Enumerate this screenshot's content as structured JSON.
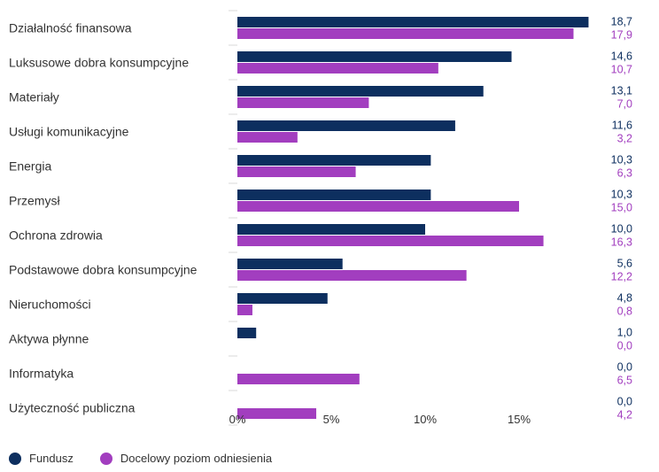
{
  "chart_data": {
    "type": "bar",
    "orientation": "horizontal",
    "categories": [
      "Działalność finansowa",
      "Luksusowe dobra konsumpcyjne",
      "Materiały",
      "Usługi komunikacyjne",
      "Energia",
      "Przemysł",
      "Ochrona zdrowia",
      "Podstawowe dobra konsumpcyjne",
      "Nieruchomości",
      "Aktywa płynne",
      "Informatyka",
      "Użyteczność publiczna"
    ],
    "series": [
      {
        "name": "Fundusz",
        "color": "#0d2f5f",
        "values": [
          18.7,
          14.6,
          13.1,
          11.6,
          10.3,
          10.3,
          10.0,
          5.6,
          4.8,
          1.0,
          0.0,
          0.0
        ],
        "labels": [
          "18,7",
          "14,6",
          "13,1",
          "11,6",
          "10,3",
          "10,3",
          "10,0",
          "5,6",
          "4,8",
          "1,0",
          "0,0",
          "0,0"
        ]
      },
      {
        "name": "Docelowy poziom odniesienia",
        "color": "#a23ebf",
        "values": [
          17.9,
          10.7,
          7.0,
          3.2,
          6.3,
          15.0,
          16.3,
          12.2,
          0.8,
          0.0,
          6.5,
          4.2
        ],
        "labels": [
          "17,9",
          "10,7",
          "7,0",
          "3,2",
          "6,3",
          "15,0",
          "16,3",
          "12,2",
          "0,8",
          "0,0",
          "6,5",
          "4,2"
        ]
      }
    ],
    "xticks": [
      {
        "value": 0,
        "label": "0%"
      },
      {
        "value": 5,
        "label": "5%"
      },
      {
        "value": 10,
        "label": "10%"
      },
      {
        "value": 15,
        "label": "15%"
      }
    ],
    "xlim": [
      0,
      20
    ],
    "grid": false,
    "legend_position": "bottom-left",
    "colors": {
      "text": "#333333",
      "separator": "#d9d9d9"
    }
  },
  "legend": {
    "items": [
      {
        "label": "Fundusz",
        "color": "#0d2f5f"
      },
      {
        "label": "Docelowy poziom odniesienia",
        "color": "#a23ebf"
      }
    ]
  }
}
